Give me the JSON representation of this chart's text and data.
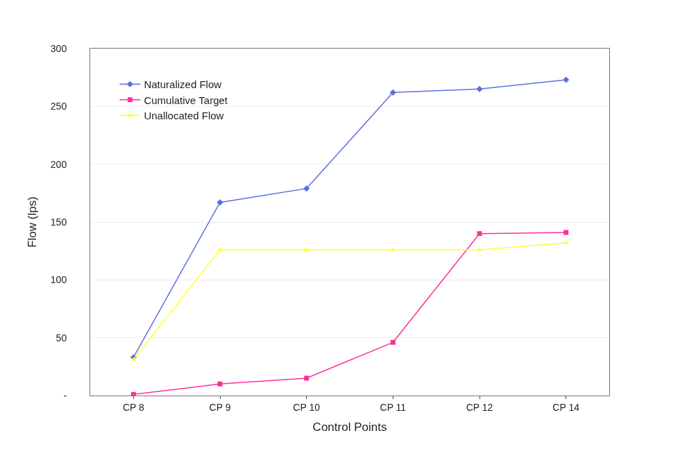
{
  "chart_data": {
    "type": "line",
    "xlabel": "Control Points",
    "ylabel": "Flow (lps)",
    "categories": [
      "CP 8",
      "CP 9",
      "CP 10",
      "CP 11",
      "CP 12",
      "CP 14"
    ],
    "series": [
      {
        "name": "Naturalized Flow",
        "color": "#5b6ee1",
        "marker": "diamond",
        "values": [
          33,
          167,
          179,
          262,
          265,
          273
        ]
      },
      {
        "name": "Cumulative Target",
        "color": "#ff2f9a",
        "marker": "square",
        "values": [
          1,
          10,
          15,
          46,
          140,
          141
        ]
      },
      {
        "name": "Unallocated Flow",
        "color": "#ffff33",
        "marker": "triangle",
        "values": [
          31,
          126,
          126,
          126,
          126,
          132
        ]
      }
    ],
    "ylim": [
      0,
      300
    ],
    "yticks": [
      {
        "value": 0,
        "label": "-"
      },
      50,
      100,
      150,
      200,
      250,
      300
    ],
    "grid": "y",
    "legend": "top left",
    "line_style": "solid"
  }
}
